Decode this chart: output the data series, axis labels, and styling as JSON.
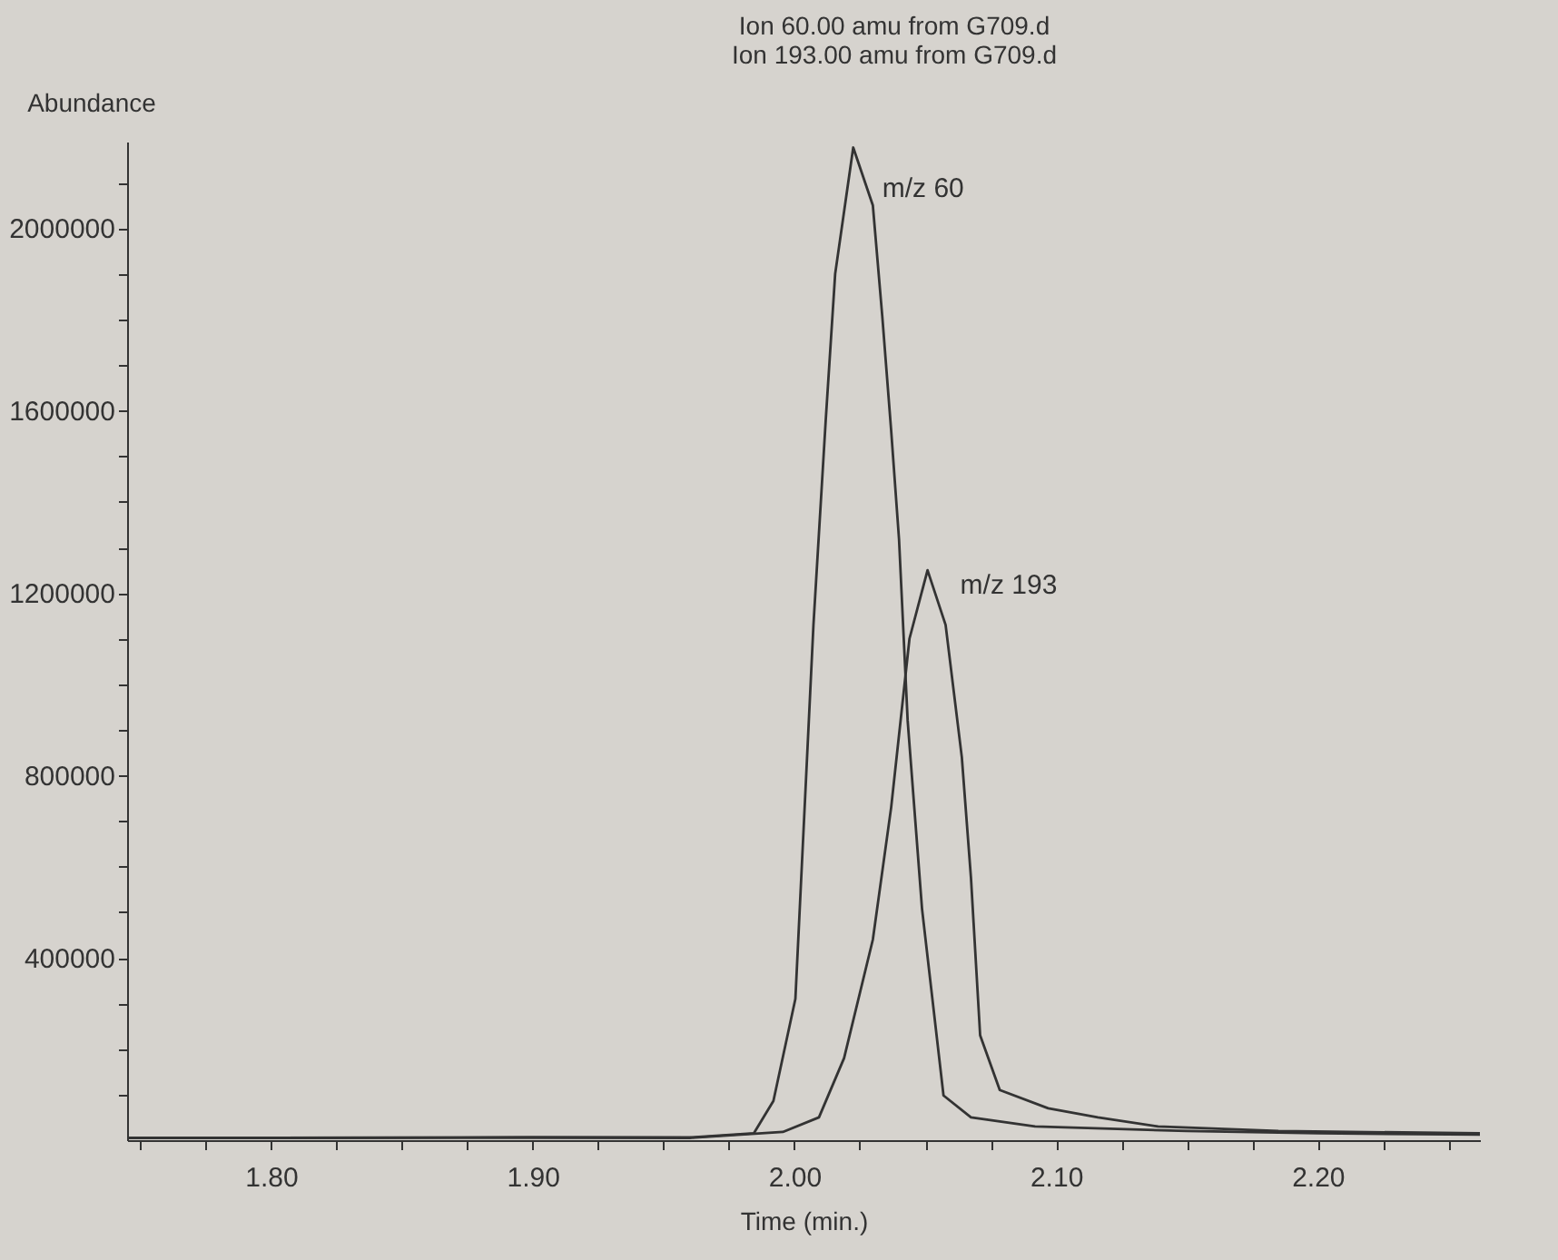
{
  "chart_data": {
    "type": "line",
    "title": "Ion 60.00 amu from G709.d",
    "subtitle": "Ion 193.00 amu from G709.d",
    "xlabel": "Time (min.)",
    "ylabel": "Abundance",
    "xlim": [
      1.745,
      2.262
    ],
    "ylim": [
      0,
      2190000
    ],
    "xticks": [
      {
        "value": 1.75,
        "label": null
      },
      {
        "value": 1.775,
        "label": null
      },
      {
        "value": 1.8,
        "label": "1.80"
      },
      {
        "value": 1.825,
        "label": null
      },
      {
        "value": 1.85,
        "label": null
      },
      {
        "value": 1.875,
        "label": null
      },
      {
        "value": 1.9,
        "label": "1.90"
      },
      {
        "value": 1.925,
        "label": null
      },
      {
        "value": 1.95,
        "label": null
      },
      {
        "value": 1.975,
        "label": null
      },
      {
        "value": 2.0,
        "label": "2.00"
      },
      {
        "value": 2.025,
        "label": null
      },
      {
        "value": 2.05,
        "label": null
      },
      {
        "value": 2.075,
        "label": null
      },
      {
        "value": 2.1,
        "label": "2.10"
      },
      {
        "value": 2.125,
        "label": null
      },
      {
        "value": 2.15,
        "label": null
      },
      {
        "value": 2.175,
        "label": null
      },
      {
        "value": 2.2,
        "label": "2.20"
      },
      {
        "value": 2.225,
        "label": null
      },
      {
        "value": 2.25,
        "label": null
      }
    ],
    "yticks": [
      {
        "value": 100000,
        "label": null
      },
      {
        "value": 200000,
        "label": null
      },
      {
        "value": 300000,
        "label": null
      },
      400000,
      {
        "value": 500000,
        "label": null
      },
      {
        "value": 600000,
        "label": null
      },
      {
        "value": 700000,
        "label": null
      },
      800000,
      {
        "value": 900000,
        "label": null
      },
      {
        "value": 1000000,
        "label": null
      },
      {
        "value": 1100000,
        "label": null
      },
      1200000,
      {
        "value": 1300000,
        "label": null
      },
      {
        "value": 1400000,
        "label": null
      },
      {
        "value": 1500000,
        "label": null
      },
      1600000,
      {
        "value": 1700000,
        "label": null
      },
      {
        "value": 1800000,
        "label": null
      },
      {
        "value": 1900000,
        "label": null
      },
      2000000,
      {
        "value": 2100000,
        "label": null
      }
    ],
    "grid": false,
    "legend": false,
    "marker": "none",
    "line_style": "solid",
    "series": [
      {
        "name": "m/z 60",
        "color": "#333333",
        "x": [
          1.745,
          1.8,
          1.9,
          1.96,
          1.9845,
          1.992,
          2.0004,
          2.0073,
          2.012,
          2.0156,
          2.0225,
          2.03,
          2.0336,
          2.037,
          2.04,
          2.0433,
          2.0488,
          2.057,
          2.0675,
          2.092,
          2.15,
          2.2,
          2.262
        ],
        "values": [
          5000,
          5000,
          6000,
          6000,
          15000,
          86000,
          310000,
          1130000,
          1580000,
          1900000,
          2177000,
          2050000,
          1807000,
          1556000,
          1318000,
          920000,
          507000,
          98000,
          50000,
          30000,
          20000,
          15000,
          12000
        ]
      },
      {
        "name": "m/z 193",
        "color": "#333333",
        "x": [
          1.745,
          1.8,
          1.9,
          1.96,
          1.9956,
          2.0094,
          2.019,
          2.03,
          2.037,
          2.044,
          2.0509,
          2.0578,
          2.064,
          2.0675,
          2.071,
          2.0785,
          2.097,
          2.116,
          2.139,
          2.185,
          2.262
        ],
        "values": [
          5000,
          5000,
          6000,
          5000,
          18000,
          50000,
          180000,
          440000,
          730000,
          1100000,
          1250000,
          1130000,
          840000,
          575000,
          230000,
          110000,
          70000,
          50000,
          30000,
          20000,
          15000
        ]
      }
    ]
  }
}
